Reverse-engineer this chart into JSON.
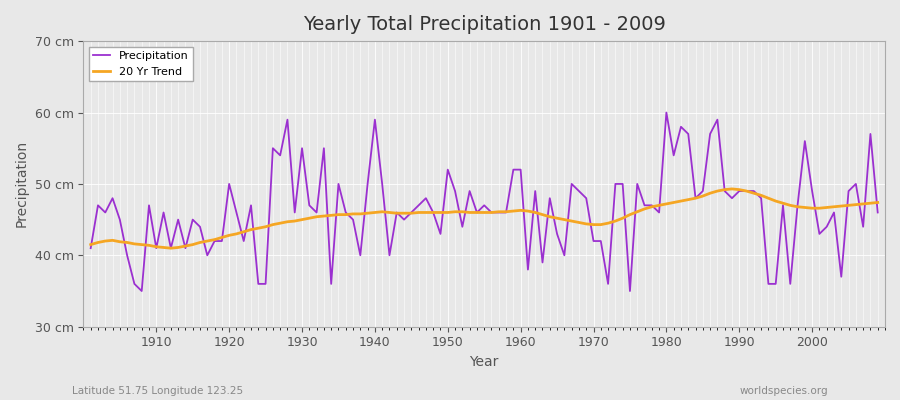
{
  "title": "Yearly Total Precipitation 1901 - 2009",
  "xlabel": "Year",
  "ylabel": "Precipitation",
  "subtitle_left": "Latitude 51.75 Longitude 123.25",
  "subtitle_right": "worldspecies.org",
  "ylim": [
    30,
    70
  ],
  "yticks": [
    30,
    40,
    50,
    60,
    70
  ],
  "ytick_labels": [
    "30 cm",
    "40 cm",
    "50 cm",
    "60 cm",
    "70 cm"
  ],
  "xticks": [
    1910,
    1920,
    1930,
    1940,
    1950,
    1960,
    1970,
    1980,
    1990,
    2000
  ],
  "background_color": "#e8e8e8",
  "plot_bg_color": "#e8e8e8",
  "precip_color": "#9b30d0",
  "trend_color": "#f5a623",
  "precip_linewidth": 1.3,
  "trend_linewidth": 2.0,
  "years": [
    1901,
    1902,
    1903,
    1904,
    1905,
    1906,
    1907,
    1908,
    1909,
    1910,
    1911,
    1912,
    1913,
    1914,
    1915,
    1916,
    1917,
    1918,
    1919,
    1920,
    1921,
    1922,
    1923,
    1924,
    1925,
    1926,
    1927,
    1928,
    1929,
    1930,
    1931,
    1932,
    1933,
    1934,
    1935,
    1936,
    1937,
    1938,
    1939,
    1940,
    1941,
    1942,
    1943,
    1944,
    1945,
    1946,
    1947,
    1948,
    1949,
    1950,
    1951,
    1952,
    1953,
    1954,
    1955,
    1956,
    1957,
    1958,
    1959,
    1960,
    1961,
    1962,
    1963,
    1964,
    1965,
    1966,
    1967,
    1968,
    1969,
    1970,
    1971,
    1972,
    1973,
    1974,
    1975,
    1976,
    1977,
    1978,
    1979,
    1980,
    1981,
    1982,
    1983,
    1984,
    1985,
    1986,
    1987,
    1988,
    1989,
    1990,
    1991,
    1992,
    1993,
    1994,
    1995,
    1996,
    1997,
    1998,
    1999,
    2000,
    2001,
    2002,
    2003,
    2004,
    2005,
    2006,
    2007,
    2008,
    2009
  ],
  "precip": [
    41,
    47,
    46,
    48,
    45,
    40,
    36,
    35,
    47,
    41,
    46,
    41,
    45,
    41,
    45,
    44,
    40,
    42,
    42,
    50,
    46,
    42,
    47,
    36,
    36,
    55,
    54,
    59,
    46,
    55,
    47,
    46,
    55,
    36,
    50,
    46,
    45,
    40,
    50,
    59,
    50,
    40,
    46,
    45,
    46,
    47,
    48,
    46,
    43,
    52,
    49,
    44,
    49,
    46,
    47,
    46,
    46,
    46,
    52,
    52,
    38,
    49,
    39,
    48,
    43,
    40,
    50,
    49,
    48,
    42,
    42,
    36,
    50,
    50,
    35,
    50,
    47,
    47,
    46,
    60,
    54,
    58,
    57,
    48,
    49,
    57,
    59,
    49,
    48,
    49,
    49,
    49,
    48,
    36,
    36,
    47,
    36,
    47,
    56,
    49,
    43,
    44,
    46,
    37,
    49,
    50,
    44,
    57,
    46
  ],
  "trend": [
    41.5,
    41.8,
    42.0,
    42.1,
    41.9,
    41.8,
    41.6,
    41.5,
    41.4,
    41.2,
    41.1,
    41.0,
    41.1,
    41.3,
    41.5,
    41.8,
    42.0,
    42.2,
    42.5,
    42.8,
    43.0,
    43.3,
    43.6,
    43.8,
    44.0,
    44.3,
    44.5,
    44.7,
    44.8,
    45.0,
    45.2,
    45.4,
    45.5,
    45.6,
    45.7,
    45.7,
    45.8,
    45.8,
    45.9,
    46.0,
    46.1,
    46.0,
    45.9,
    45.9,
    45.9,
    46.0,
    46.0,
    46.0,
    46.0,
    46.0,
    46.1,
    46.1,
    46.0,
    46.0,
    46.0,
    46.0,
    46.1,
    46.1,
    46.2,
    46.3,
    46.2,
    46.0,
    45.7,
    45.4,
    45.2,
    45.0,
    44.8,
    44.6,
    44.4,
    44.3,
    44.3,
    44.5,
    44.8,
    45.2,
    45.7,
    46.1,
    46.5,
    46.8,
    47.0,
    47.2,
    47.4,
    47.6,
    47.8,
    48.0,
    48.3,
    48.7,
    49.0,
    49.2,
    49.3,
    49.2,
    49.0,
    48.7,
    48.4,
    48.0,
    47.6,
    47.3,
    47.0,
    46.8,
    46.7,
    46.6,
    46.6,
    46.7,
    46.8,
    46.9,
    47.0,
    47.1,
    47.2,
    47.3,
    47.4
  ]
}
